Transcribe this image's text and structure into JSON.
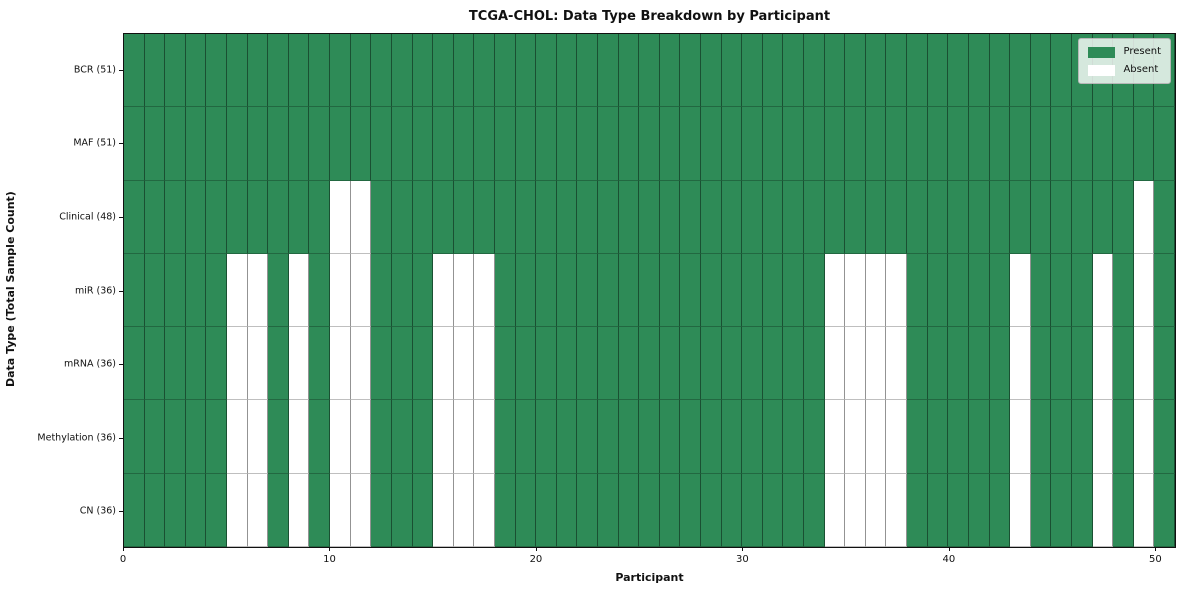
{
  "chart_data": {
    "type": "heatmap",
    "title": "TCGA-CHOL: Data Type Breakdown by Participant",
    "xlabel": "Participant",
    "ylabel": "Data Type (Total Sample Count)",
    "x_range": [
      0,
      51
    ],
    "x_ticks": [
      0,
      10,
      20,
      30,
      40,
      50
    ],
    "n_participants": 51,
    "cell_states": [
      "Present",
      "Absent"
    ],
    "rows": [
      {
        "label": "BCR (51)",
        "total_present": 51,
        "absent_participants": []
      },
      {
        "label": "MAF (51)",
        "total_present": 51,
        "absent_participants": []
      },
      {
        "label": "Clinical (48)",
        "total_present": 48,
        "absent_participants": [
          10,
          11,
          49
        ]
      },
      {
        "label": "miR (36)",
        "total_present": 36,
        "absent_participants": [
          5,
          6,
          8,
          10,
          11,
          15,
          16,
          17,
          34,
          35,
          36,
          37,
          43,
          47,
          49
        ]
      },
      {
        "label": "mRNA (36)",
        "total_present": 36,
        "absent_participants": [
          5,
          6,
          8,
          10,
          11,
          15,
          16,
          17,
          34,
          35,
          36,
          37,
          43,
          47,
          49
        ]
      },
      {
        "label": "Methylation (36)",
        "total_present": 36,
        "absent_participants": [
          5,
          6,
          8,
          10,
          11,
          15,
          16,
          17,
          34,
          35,
          36,
          37,
          43,
          47,
          49
        ]
      },
      {
        "label": "CN (36)",
        "total_present": 36,
        "absent_participants": [
          5,
          6,
          8,
          10,
          11,
          15,
          16,
          17,
          34,
          35,
          36,
          37,
          43,
          47,
          49
        ]
      }
    ],
    "legend": [
      {
        "label": "Present",
        "color": "#2e8b57"
      },
      {
        "label": "Absent",
        "color": "#ffffff"
      }
    ],
    "legend_position": "upper right",
    "colors": {
      "present": "#2e8b57",
      "absent": "#ffffff",
      "cell_edge_vertical": "rgba(0,0,0,0.42)",
      "cell_edge_horizontal": "rgba(0,0,0,0.25)",
      "spine": "#111111"
    },
    "grid": "cell-edges"
  }
}
